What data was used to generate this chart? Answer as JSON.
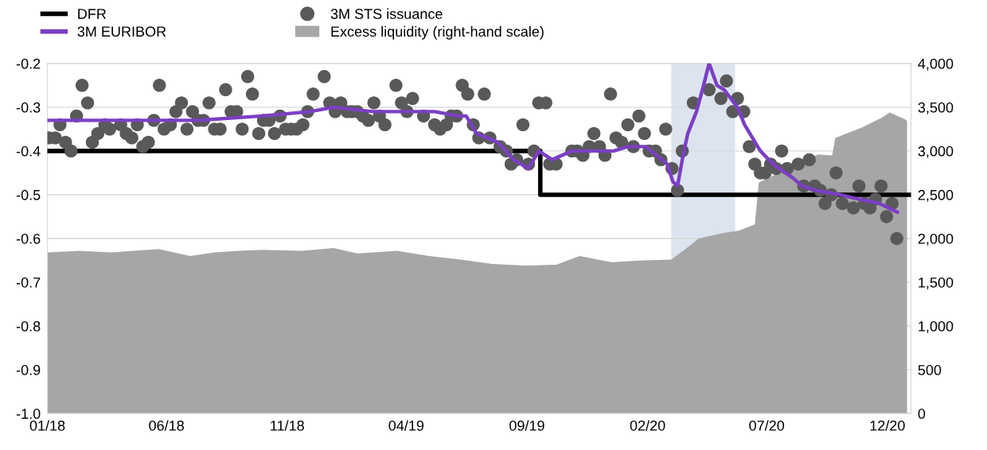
{
  "chart_data": {
    "type": "line",
    "xlim": [
      "2018-01-01",
      "2020-12-31"
    ],
    "xticks": [
      {
        "value": "2018-01-01",
        "label": "01/18"
      },
      {
        "value": "2018-06-01",
        "label": "06/18"
      },
      {
        "value": "2018-11-01",
        "label": "11/18"
      },
      {
        "value": "2019-04-01",
        "label": "04/19"
      },
      {
        "value": "2019-09-01",
        "label": "09/19"
      },
      {
        "value": "2020-02-01",
        "label": "02/20"
      },
      {
        "value": "2020-07-01",
        "label": "07/20"
      },
      {
        "value": "2020-12-01",
        "label": "12/20"
      }
    ],
    "ylim": [
      -1.0,
      -0.2
    ],
    "yticks": [
      {
        "value": -1.0,
        "label": "-1.0"
      },
      {
        "value": -0.9,
        "label": "-0.9"
      },
      {
        "value": -0.8,
        "label": "-0.8"
      },
      {
        "value": -0.7,
        "label": "-0.7"
      },
      {
        "value": -0.6,
        "label": "-0.6"
      },
      {
        "value": -0.5,
        "label": "-0.5"
      },
      {
        "value": -0.4,
        "label": "-0.4"
      },
      {
        "value": -0.3,
        "label": "-0.3"
      },
      {
        "value": -0.2,
        "label": "-0.2"
      }
    ],
    "y2lim": [
      0,
      4000
    ],
    "y2ticks": [
      0,
      {
        "value": 500,
        "label": "500"
      },
      {
        "value": 1000,
        "label": "1,000"
      },
      {
        "value": 1500,
        "label": "1,500"
      },
      {
        "value": 2000,
        "label": "2,000"
      },
      {
        "value": 2500,
        "label": "2,500"
      },
      {
        "value": 3000,
        "label": "3,000"
      },
      {
        "value": 3500,
        "label": "3,500"
      },
      {
        "value": 4000,
        "label": "4,000"
      }
    ],
    "grid": true,
    "legend": "top left",
    "bands": [
      {
        "axis": "x",
        "from": "2020-03-02",
        "to": "2020-05-22",
        "color": "#dce4f0"
      }
    ],
    "series": [
      {
        "name": "DFR",
        "type": "step",
        "color": "#000000",
        "x": [
          "2018-01-01",
          "2019-09-18",
          "2020-12-31"
        ],
        "values": [
          -0.4,
          -0.5,
          -0.5
        ]
      },
      {
        "name": "3M EURIBOR",
        "color": "#7b3fc4",
        "x": [
          "2018-01-01",
          "2018-04-02",
          "2018-07-11",
          "2018-09-30",
          "2018-11-30",
          "2018-12-30",
          "2019-02-18",
          "2019-05-07",
          "2019-06-06",
          "2019-06-16",
          "2019-06-29",
          "2019-07-26",
          "2019-08-15",
          "2019-09-03",
          "2019-09-16",
          "2019-10-03",
          "2019-10-28",
          "2019-12-20",
          "2020-01-07",
          "2020-01-30",
          "2020-02-26",
          "2020-03-04",
          "2020-03-10",
          "2020-03-17",
          "2020-03-23",
          "2020-04-03",
          "2020-04-12",
          "2020-04-19",
          "2020-04-29",
          "2020-05-08",
          "2020-05-25",
          "2020-06-03",
          "2020-06-23",
          "2020-07-09",
          "2020-08-02",
          "2020-08-15",
          "2020-09-01",
          "2020-10-02",
          "2020-10-25",
          "2020-11-21",
          "2020-12-14"
        ],
        "values": [
          -0.33,
          -0.33,
          -0.33,
          -0.32,
          -0.31,
          -0.3,
          -0.31,
          -0.31,
          -0.32,
          -0.32,
          -0.36,
          -0.38,
          -0.42,
          -0.44,
          -0.4,
          -0.42,
          -0.4,
          -0.4,
          -0.39,
          -0.39,
          -0.43,
          -0.47,
          -0.48,
          -0.41,
          -0.36,
          -0.31,
          -0.25,
          -0.2,
          -0.25,
          -0.26,
          -0.3,
          -0.34,
          -0.4,
          -0.43,
          -0.46,
          -0.48,
          -0.49,
          -0.5,
          -0.51,
          -0.52,
          -0.54
        ]
      },
      {
        "name": "3M STS issuance",
        "type": "scatter",
        "marker": "circle",
        "color": "#595959",
        "x": [
          "2018-01-03",
          "2018-01-11",
          "2018-01-17",
          "2018-01-24",
          "2018-01-31",
          "2018-02-07",
          "2018-02-14",
          "2018-02-21",
          "2018-02-27",
          "2018-03-06",
          "2018-03-15",
          "2018-03-21",
          "2018-04-04",
          "2018-04-11",
          "2018-04-18",
          "2018-04-25",
          "2018-05-02",
          "2018-05-09",
          "2018-05-16",
          "2018-05-23",
          "2018-05-29",
          "2018-06-06",
          "2018-06-13",
          "2018-06-20",
          "2018-06-27",
          "2018-07-04",
          "2018-07-11",
          "2018-07-18",
          "2018-07-25",
          "2018-08-01",
          "2018-08-08",
          "2018-08-15",
          "2018-08-22",
          "2018-08-29",
          "2018-09-05",
          "2018-09-12",
          "2018-09-18",
          "2018-09-26",
          "2018-10-02",
          "2018-10-09",
          "2018-10-16",
          "2018-10-23",
          "2018-10-30",
          "2018-11-06",
          "2018-11-13",
          "2018-11-21",
          "2018-11-27",
          "2018-12-04",
          "2018-12-18",
          "2018-12-25",
          "2019-01-01",
          "2019-01-08",
          "2019-01-16",
          "2019-01-22",
          "2019-01-29",
          "2019-02-05",
          "2019-02-12",
          "2019-02-19",
          "2019-02-26",
          "2019-03-05",
          "2019-03-19",
          "2019-03-26",
          "2019-04-02",
          "2019-04-09",
          "2019-04-23",
          "2019-05-07",
          "2019-05-14",
          "2019-05-22",
          "2019-05-28",
          "2019-06-04",
          "2019-06-11",
          "2019-06-18",
          "2019-06-25",
          "2019-07-02",
          "2019-07-09",
          "2019-07-16",
          "2019-07-29",
          "2019-08-06",
          "2019-08-12",
          "2019-08-19",
          "2019-08-27",
          "2019-09-03",
          "2019-09-10",
          "2019-09-16",
          "2019-09-25",
          "2019-09-30",
          "2019-10-08",
          "2019-10-28",
          "2019-11-04",
          "2019-11-11",
          "2019-11-19",
          "2019-11-25",
          "2019-12-02",
          "2019-12-09",
          "2019-12-16",
          "2019-12-23",
          "2019-12-30",
          "2020-01-07",
          "2020-01-14",
          "2020-01-21",
          "2020-01-28",
          "2020-02-03",
          "2020-02-11",
          "2020-02-18",
          "2020-02-24",
          "2020-03-03",
          "2020-03-10",
          "2020-03-16",
          "2020-03-30",
          "2020-04-19",
          "2020-05-04",
          "2020-05-11",
          "2020-05-19",
          "2020-05-25",
          "2020-06-02",
          "2020-06-09",
          "2020-06-16",
          "2020-06-23",
          "2020-06-29",
          "2020-07-06",
          "2020-07-13",
          "2020-07-20",
          "2020-07-27",
          "2020-08-10",
          "2020-08-17",
          "2020-08-24",
          "2020-08-31",
          "2020-09-07",
          "2020-09-13",
          "2020-09-21",
          "2020-09-27",
          "2020-10-05",
          "2020-10-19",
          "2020-10-26",
          "2020-11-02",
          "2020-11-09",
          "2020-11-16",
          "2020-11-23",
          "2020-11-30",
          "2020-12-07",
          "2020-12-13"
        ],
        "values": [
          -0.37,
          -0.37,
          -0.34,
          -0.38,
          -0.4,
          -0.32,
          -0.25,
          -0.29,
          -0.38,
          -0.36,
          -0.34,
          -0.35,
          -0.34,
          -0.36,
          -0.37,
          -0.34,
          -0.39,
          -0.38,
          -0.33,
          -0.25,
          -0.35,
          -0.34,
          -0.31,
          -0.29,
          -0.35,
          -0.31,
          -0.33,
          -0.33,
          -0.29,
          -0.35,
          -0.35,
          -0.26,
          -0.31,
          -0.31,
          -0.35,
          -0.23,
          -0.27,
          -0.36,
          -0.33,
          -0.33,
          -0.36,
          -0.32,
          -0.35,
          -0.35,
          -0.35,
          -0.34,
          -0.31,
          -0.27,
          -0.23,
          -0.29,
          -0.31,
          -0.29,
          -0.31,
          -0.31,
          -0.31,
          -0.32,
          -0.33,
          -0.29,
          -0.32,
          -0.34,
          -0.25,
          -0.29,
          -0.31,
          -0.28,
          -0.32,
          -0.34,
          -0.35,
          -0.34,
          -0.32,
          -0.32,
          -0.25,
          -0.27,
          -0.34,
          -0.37,
          -0.27,
          -0.37,
          -0.39,
          -0.4,
          -0.43,
          -0.42,
          -0.34,
          -0.43,
          -0.4,
          -0.29,
          -0.29,
          -0.43,
          -0.43,
          -0.4,
          -0.4,
          -0.41,
          -0.39,
          -0.36,
          -0.39,
          -0.41,
          -0.27,
          -0.37,
          -0.38,
          -0.34,
          -0.39,
          -0.32,
          -0.36,
          -0.4,
          -0.4,
          -0.42,
          -0.35,
          -0.44,
          -0.49,
          -0.4,
          -0.29,
          -0.26,
          -0.28,
          -0.24,
          -0.31,
          -0.28,
          -0.31,
          -0.39,
          -0.43,
          -0.45,
          -0.45,
          -0.43,
          -0.44,
          -0.4,
          -0.44,
          -0.43,
          -0.48,
          -0.42,
          -0.48,
          -0.49,
          -0.52,
          -0.5,
          -0.45,
          -0.52,
          -0.53,
          -0.48,
          -0.52,
          -0.53,
          -0.51,
          -0.48,
          -0.55,
          -0.52,
          -0.6
        ]
      },
      {
        "name": "Excess liquidity (right-hand scale)",
        "type": "area",
        "axis": "y2",
        "color": "#a6a6a6",
        "x": [
          "2018-01-01",
          "2018-02-10",
          "2018-03-23",
          "2018-05-22",
          "2018-07-01",
          "2018-08-01",
          "2018-08-31",
          "2018-09-30",
          "2018-11-19",
          "2018-12-30",
          "2019-01-29",
          "2019-03-20",
          "2019-04-30",
          "2019-06-09",
          "2019-07-19",
          "2019-08-30",
          "2019-10-08",
          "2019-11-07",
          "2019-12-17",
          "2020-01-27",
          "2020-03-02",
          "2020-03-17",
          "2020-04-06",
          "2020-05-06",
          "2020-05-27",
          "2020-06-16",
          "2020-06-21",
          "2020-09-04",
          "2020-09-22",
          "2020-09-26",
          "2020-10-30",
          "2020-11-24",
          "2020-12-04",
          "2020-12-24",
          "2020-12-26"
        ],
        "values": [
          1840,
          1860,
          1840,
          1880,
          1800,
          1840,
          1860,
          1870,
          1860,
          1890,
          1830,
          1860,
          1800,
          1760,
          1710,
          1690,
          1700,
          1800,
          1730,
          1750,
          1760,
          1860,
          2000,
          2060,
          2090,
          2160,
          2640,
          2960,
          2950,
          3150,
          3270,
          3380,
          3440,
          3360,
          3340
        ]
      }
    ]
  }
}
